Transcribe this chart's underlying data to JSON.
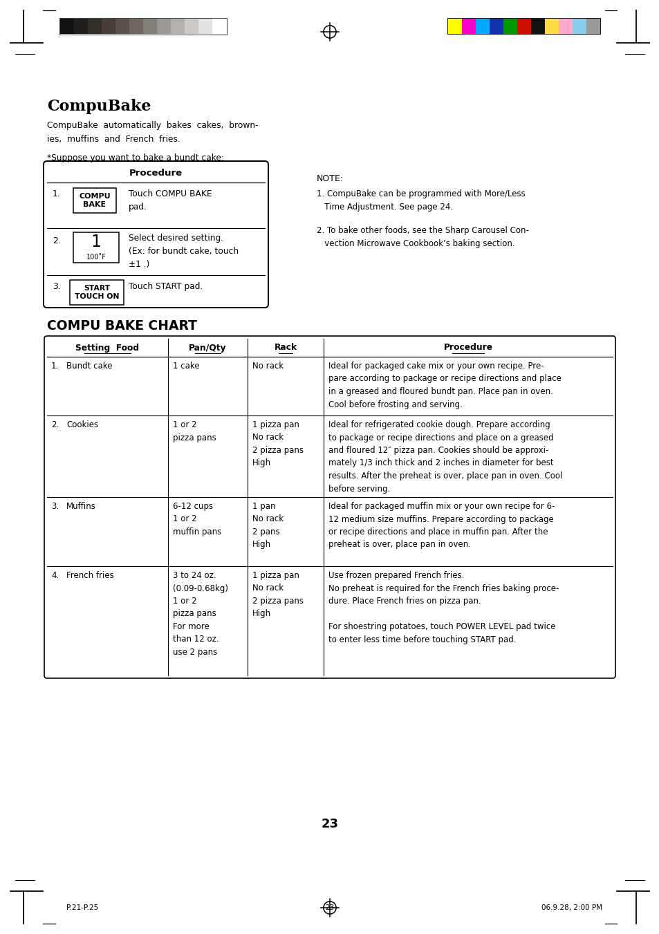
{
  "title": "CompuBake",
  "subtitle_line1": "CompuBake  automatically  bakes  cakes,  brown-",
  "subtitle_line2": "ies,  muffins  and  French  fries.",
  "suppose_text": "*Suppose you want to bake a bundt cake:",
  "procedure_header": "Procedure",
  "note_header": "NOTE:",
  "note_item1_line1": "1. CompuBake can be programmed with More/Less",
  "note_item1_line2": "   Time Adjustment. See page 24.",
  "note_item2_line1": "2. To bake other foods, see the Sharp Carousel Con-",
  "note_item2_line2": "   vection Microwave Cookbook’s baking section.",
  "chart_title": "COMPU BAKE CHART",
  "chart_col0_hdr": "Setting  Food",
  "chart_col1_hdr": "Pan/Qty",
  "chart_col2_hdr": "Rack",
  "chart_col3_hdr": "Procedure",
  "row1_num": "1.",
  "row1_food": "Bundt cake",
  "row1_pan": "1 cake",
  "row1_rack": "No rack",
  "row1_proc": "Ideal for packaged cake mix or your own recipe. Pre-\npare according to package or recipe directions and place\nin a greased and floured bundt pan. Place pan in oven.\nCool before frosting and serving.",
  "row2_num": "2.",
  "row2_food": "Cookies",
  "row2_pan": "1 or 2\npizza pans",
  "row2_rack": "1 pizza pan\nNo rack\n2 pizza pans\nHigh",
  "row2_proc": "Ideal for refrigerated cookie dough. Prepare according\nto package or recipe directions and place on a greased\nand floured 12″ pizza pan. Cookies should be approxi-\nmately 1/3 inch thick and 2 inches in diameter for best\nresults. After the preheat is over, place pan in oven. Cool\nbefore serving.",
  "row3_num": "3.",
  "row3_food": "Muffins",
  "row3_pan": "6-12 cups\n1 or 2\nmuffin pans",
  "row3_rack": "1 pan\nNo rack\n2 pans\nHigh",
  "row3_proc": "Ideal for packaged muffin mix or your own recipe for 6-\n12 medium size muffins. Prepare according to package\nor recipe directions and place in muffin pan. After the\npreheat is over, place pan in oven.",
  "row4_num": "4.",
  "row4_food": "French fries",
  "row4_pan": "3 to 24 oz.\n(0.09-0.68kg)\n1 or 2\npizza pans\nFor more\nthan 12 oz.\nuse 2 pans",
  "row4_rack": "1 pizza pan\nNo rack\n2 pizza pans\nHigh",
  "row4_proc": "Use frozen prepared French fries.\nNo preheat is required for the French fries baking proce-\ndure. Place French fries on pizza pan.\n\nFor shoestring potatoes, touch POWER LEVEL pad twice\nto enter less time before touching START pad.",
  "page_number": "23",
  "footer_left": "P.21-P.25",
  "footer_center": "23",
  "footer_right": "06.9.28, 2:00 PM",
  "cleft": [
    "#111111",
    "#221e1a",
    "#332e28",
    "#474039",
    "#5a524b",
    "#6e6760",
    "#857f79",
    "#9d9893",
    "#b5b1ae",
    "#cdc9c7",
    "#e4e2e1",
    "#ffffff"
  ],
  "cright_bg": "#1a1a1a",
  "cright": [
    "#ffff00",
    "#ff00cc",
    "#00aaff",
    "#1133aa",
    "#009900",
    "#cc1100",
    "#111111",
    "#ffdd44",
    "#ffaacc",
    "#88ccee",
    "#999999"
  ]
}
